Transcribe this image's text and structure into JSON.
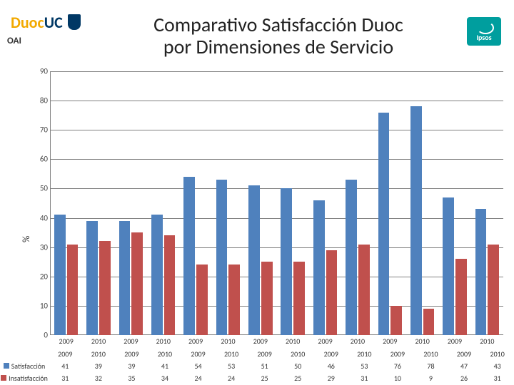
{
  "header": {
    "logo_duoc": "Duoc",
    "logo_uc": "UC",
    "oai": "OAI",
    "title_line1": "Comparativo Satisfacción Duoc",
    "title_line2": "por Dimensiones de Servicio",
    "ipsos": "Ipsos"
  },
  "chart": {
    "type": "bar",
    "ylabel": "%",
    "ylim": [
      0,
      90
    ],
    "ytick_step": 10,
    "grid_color": "#808080",
    "background_color": "#ffffff",
    "categories": [
      "2009",
      "2010",
      "2009",
      "2010",
      "2009",
      "2010",
      "2009",
      "2010",
      "2009",
      "2010",
      "2009",
      "2010",
      "2009",
      "2010"
    ],
    "series": [
      {
        "name": "Satisfacción",
        "color": "#4f81bd",
        "values": [
          41,
          39,
          39,
          41,
          54,
          53,
          51,
          50,
          46,
          53,
          76,
          78,
          47,
          43
        ]
      },
      {
        "name": "Insatisfacción",
        "color": "#c0504d",
        "values": [
          31,
          32,
          35,
          34,
          24,
          24,
          25,
          25,
          29,
          31,
          10,
          9,
          26,
          31
        ]
      }
    ],
    "label_fontsize": 11,
    "tick_fontsize": 10,
    "bar_gap": 2
  }
}
